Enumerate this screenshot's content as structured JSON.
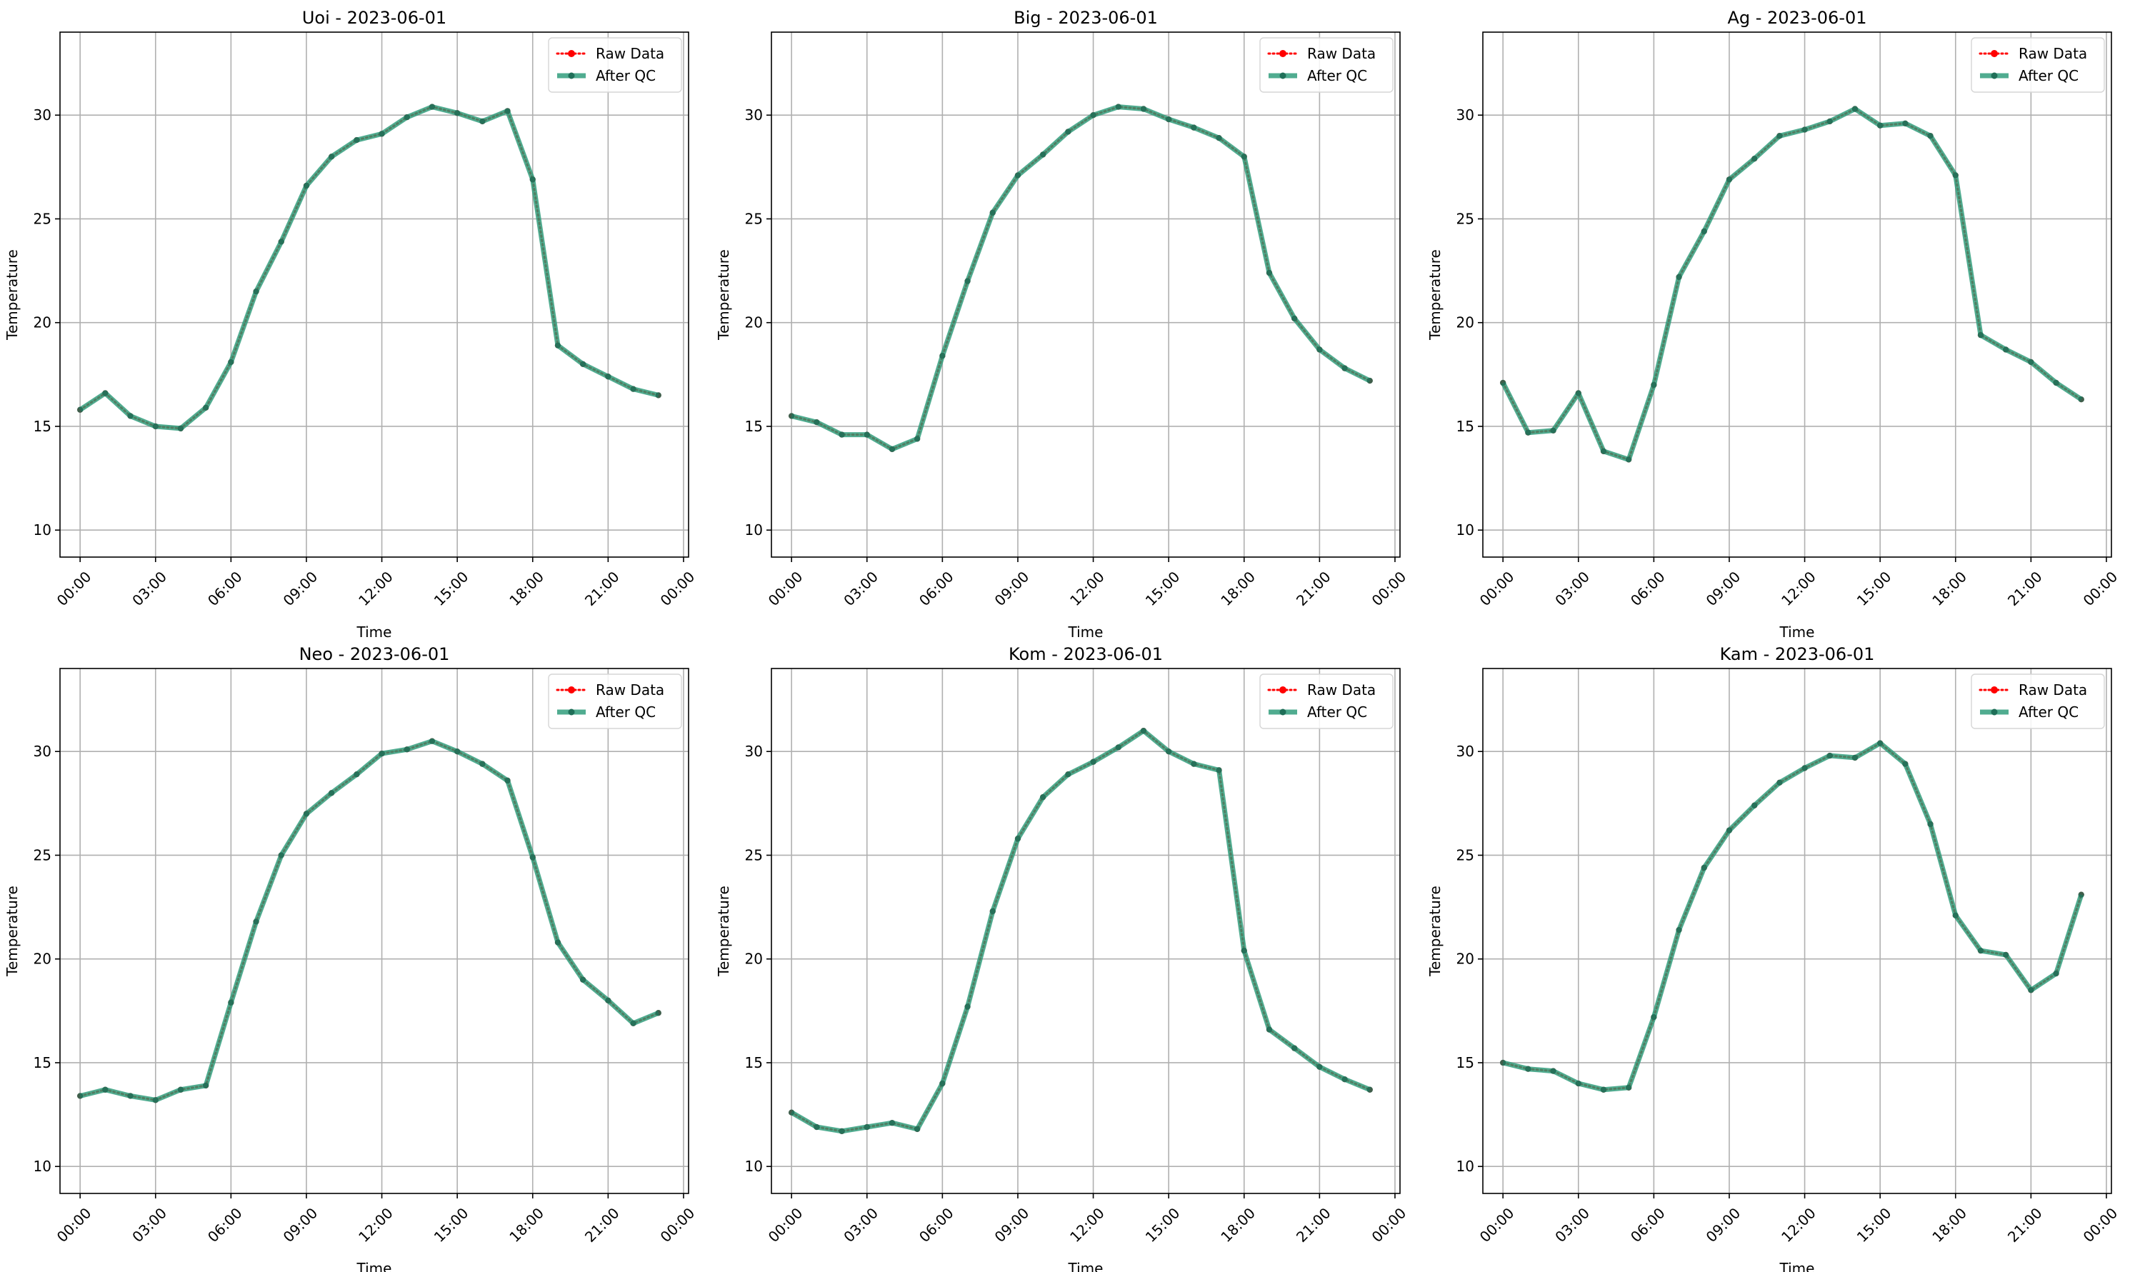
{
  "chart_data": [
    {
      "type": "line",
      "title": "Uoi - 2023-06-01",
      "xlabel": "Time",
      "ylabel": "Temperature",
      "x": [
        "00:00",
        "01:00",
        "02:00",
        "03:00",
        "04:00",
        "05:00",
        "06:00",
        "07:00",
        "08:00",
        "09:00",
        "10:00",
        "11:00",
        "12:00",
        "13:00",
        "14:00",
        "15:00",
        "16:00",
        "17:00",
        "18:00",
        "19:00",
        "20:00",
        "21:00",
        "22:00",
        "23:00"
      ],
      "xticks": [
        "00:00",
        "03:00",
        "06:00",
        "09:00",
        "12:00",
        "15:00",
        "18:00",
        "21:00",
        "00:00"
      ],
      "yticks": [
        10,
        15,
        20,
        25,
        30
      ],
      "ylim": [
        8.7,
        34.0
      ],
      "xlim": [
        "-00:48",
        "24:12"
      ],
      "grid": true,
      "legend_position": "top-right",
      "series": [
        {
          "name": "Raw Data",
          "color": "#ff0000",
          "style": "dotted",
          "values": [
            15.8,
            16.6,
            15.5,
            15.0,
            14.9,
            15.9,
            18.1,
            21.5,
            23.9,
            26.6,
            28.0,
            28.8,
            29.1,
            29.9,
            30.4,
            30.1,
            29.7,
            30.2,
            26.9,
            18.9,
            18.0,
            17.4,
            16.8,
            16.5
          ]
        },
        {
          "name": "After QC",
          "color": "#2a9a78",
          "style": "solid",
          "values": [
            15.8,
            16.6,
            15.5,
            15.0,
            14.9,
            15.9,
            18.1,
            21.5,
            23.9,
            26.6,
            28.0,
            28.8,
            29.1,
            29.9,
            30.4,
            30.1,
            29.7,
            30.2,
            26.9,
            18.9,
            18.0,
            17.4,
            16.8,
            16.5
          ]
        }
      ]
    },
    {
      "type": "line",
      "title": "Big - 2023-06-01",
      "xlabel": "Time",
      "ylabel": "Temperature",
      "x": [
        "00:00",
        "01:00",
        "02:00",
        "03:00",
        "04:00",
        "05:00",
        "06:00",
        "07:00",
        "08:00",
        "09:00",
        "10:00",
        "11:00",
        "12:00",
        "13:00",
        "14:00",
        "15:00",
        "16:00",
        "17:00",
        "18:00",
        "19:00",
        "20:00",
        "21:00",
        "22:00",
        "23:00"
      ],
      "xticks": [
        "00:00",
        "03:00",
        "06:00",
        "09:00",
        "12:00",
        "15:00",
        "18:00",
        "21:00",
        "00:00"
      ],
      "yticks": [
        10,
        15,
        20,
        25,
        30
      ],
      "ylim": [
        8.7,
        34.0
      ],
      "xlim": [
        "-00:48",
        "24:12"
      ],
      "grid": true,
      "legend_position": "top-right",
      "series": [
        {
          "name": "Raw Data",
          "color": "#ff0000",
          "style": "dotted",
          "values": [
            15.5,
            15.2,
            14.6,
            14.6,
            13.9,
            14.4,
            18.4,
            22.0,
            25.3,
            27.1,
            28.1,
            29.2,
            30.0,
            30.4,
            30.3,
            29.8,
            29.4,
            28.9,
            28.0,
            22.4,
            20.2,
            18.7,
            17.8,
            17.2
          ]
        },
        {
          "name": "After QC",
          "color": "#2a9a78",
          "style": "solid",
          "values": [
            15.5,
            15.2,
            14.6,
            14.6,
            13.9,
            14.4,
            18.4,
            22.0,
            25.3,
            27.1,
            28.1,
            29.2,
            30.0,
            30.4,
            30.3,
            29.8,
            29.4,
            28.9,
            28.0,
            22.4,
            20.2,
            18.7,
            17.8,
            17.2
          ]
        }
      ]
    },
    {
      "type": "line",
      "title": "Ag - 2023-06-01",
      "xlabel": "Time",
      "ylabel": "Temperature",
      "x": [
        "00:00",
        "01:00",
        "02:00",
        "03:00",
        "04:00",
        "05:00",
        "06:00",
        "07:00",
        "08:00",
        "09:00",
        "10:00",
        "11:00",
        "12:00",
        "13:00",
        "14:00",
        "15:00",
        "16:00",
        "17:00",
        "18:00",
        "19:00",
        "20:00",
        "21:00",
        "22:00",
        "23:00"
      ],
      "xticks": [
        "00:00",
        "03:00",
        "06:00",
        "09:00",
        "12:00",
        "15:00",
        "18:00",
        "21:00",
        "00:00"
      ],
      "yticks": [
        10,
        15,
        20,
        25,
        30
      ],
      "ylim": [
        8.7,
        34.0
      ],
      "xlim": [
        "-00:48",
        "24:12"
      ],
      "grid": true,
      "legend_position": "top-right",
      "series": [
        {
          "name": "Raw Data",
          "color": "#ff0000",
          "style": "dotted",
          "values": [
            17.1,
            14.7,
            14.8,
            16.6,
            13.8,
            13.4,
            17.0,
            22.2,
            24.4,
            26.9,
            27.9,
            29.0,
            29.3,
            29.7,
            30.3,
            29.5,
            29.6,
            29.0,
            27.1,
            19.4,
            18.7,
            18.1,
            17.1,
            16.3
          ]
        },
        {
          "name": "After QC",
          "color": "#2a9a78",
          "style": "solid",
          "values": [
            17.1,
            14.7,
            14.8,
            16.6,
            13.8,
            13.4,
            17.0,
            22.2,
            24.4,
            26.9,
            27.9,
            29.0,
            29.3,
            29.7,
            30.3,
            29.5,
            29.6,
            29.0,
            27.1,
            19.4,
            18.7,
            18.1,
            17.1,
            16.3
          ]
        }
      ]
    },
    {
      "type": "line",
      "title": "Neo - 2023-06-01",
      "xlabel": "Time",
      "ylabel": "Temperature",
      "x": [
        "00:00",
        "01:00",
        "02:00",
        "03:00",
        "04:00",
        "05:00",
        "06:00",
        "07:00",
        "08:00",
        "09:00",
        "10:00",
        "11:00",
        "12:00",
        "13:00",
        "14:00",
        "15:00",
        "16:00",
        "17:00",
        "18:00",
        "19:00",
        "20:00",
        "21:00",
        "22:00",
        "23:00"
      ],
      "xticks": [
        "00:00",
        "03:00",
        "06:00",
        "09:00",
        "12:00",
        "15:00",
        "18:00",
        "21:00",
        "00:00"
      ],
      "yticks": [
        10,
        15,
        20,
        25,
        30
      ],
      "ylim": [
        8.7,
        34.0
      ],
      "xlim": [
        "-00:48",
        "24:12"
      ],
      "grid": true,
      "legend_position": "top-right",
      "series": [
        {
          "name": "Raw Data",
          "color": "#ff0000",
          "style": "dotted",
          "values": [
            13.4,
            13.7,
            13.4,
            13.2,
            13.7,
            13.9,
            17.9,
            21.8,
            25.0,
            27.0,
            28.0,
            28.9,
            29.9,
            30.1,
            30.5,
            30.0,
            29.4,
            28.6,
            24.9,
            20.8,
            19.0,
            18.0,
            16.9,
            17.4
          ]
        },
        {
          "name": "After QC",
          "color": "#2a9a78",
          "style": "solid",
          "values": [
            13.4,
            13.7,
            13.4,
            13.2,
            13.7,
            13.9,
            17.9,
            21.8,
            25.0,
            27.0,
            28.0,
            28.9,
            29.9,
            30.1,
            30.5,
            30.0,
            29.4,
            28.6,
            24.9,
            20.8,
            19.0,
            18.0,
            16.9,
            17.4
          ]
        }
      ]
    },
    {
      "type": "line",
      "title": "Kom - 2023-06-01",
      "xlabel": "Time",
      "ylabel": "Temperature",
      "x": [
        "00:00",
        "01:00",
        "02:00",
        "03:00",
        "04:00",
        "05:00",
        "06:00",
        "07:00",
        "08:00",
        "09:00",
        "10:00",
        "11:00",
        "12:00",
        "13:00",
        "14:00",
        "15:00",
        "16:00",
        "17:00",
        "18:00",
        "19:00",
        "20:00",
        "21:00",
        "22:00",
        "23:00"
      ],
      "xticks": [
        "00:00",
        "03:00",
        "06:00",
        "09:00",
        "12:00",
        "15:00",
        "18:00",
        "21:00",
        "00:00"
      ],
      "yticks": [
        10,
        15,
        20,
        25,
        30
      ],
      "ylim": [
        8.7,
        34.0
      ],
      "xlim": [
        "-00:48",
        "24:12"
      ],
      "grid": true,
      "legend_position": "top-right",
      "series": [
        {
          "name": "Raw Data",
          "color": "#ff0000",
          "style": "dotted",
          "values": [
            12.6,
            11.9,
            11.7,
            11.9,
            12.1,
            11.8,
            14.0,
            17.7,
            22.3,
            25.8,
            27.8,
            28.9,
            29.5,
            30.2,
            31.0,
            30.0,
            29.4,
            29.1,
            20.4,
            16.6,
            15.7,
            14.8,
            14.2,
            13.7
          ]
        },
        {
          "name": "After QC",
          "color": "#2a9a78",
          "style": "solid",
          "values": [
            12.6,
            11.9,
            11.7,
            11.9,
            12.1,
            11.8,
            14.0,
            17.7,
            22.3,
            25.8,
            27.8,
            28.9,
            29.5,
            30.2,
            31.0,
            30.0,
            29.4,
            29.1,
            20.4,
            16.6,
            15.7,
            14.8,
            14.2,
            13.7
          ]
        }
      ]
    },
    {
      "type": "line",
      "title": "Kam - 2023-06-01",
      "xlabel": "Time",
      "ylabel": "Temperature",
      "x": [
        "00:00",
        "01:00",
        "02:00",
        "03:00",
        "04:00",
        "05:00",
        "06:00",
        "07:00",
        "08:00",
        "09:00",
        "10:00",
        "11:00",
        "12:00",
        "13:00",
        "14:00",
        "15:00",
        "16:00",
        "17:00",
        "18:00",
        "19:00",
        "20:00",
        "21:00",
        "22:00",
        "23:00"
      ],
      "xticks": [
        "00:00",
        "03:00",
        "06:00",
        "09:00",
        "12:00",
        "15:00",
        "18:00",
        "21:00",
        "00:00"
      ],
      "yticks": [
        10,
        15,
        20,
        25,
        30
      ],
      "ylim": [
        8.7,
        34.0
      ],
      "xlim": [
        "-00:48",
        "24:12"
      ],
      "grid": true,
      "legend_position": "top-right",
      "series": [
        {
          "name": "Raw Data",
          "color": "#ff0000",
          "style": "dotted",
          "values": [
            15.0,
            14.7,
            14.6,
            14.0,
            13.7,
            13.8,
            17.2,
            21.4,
            24.4,
            26.2,
            27.4,
            28.5,
            29.2,
            29.8,
            29.7,
            30.4,
            29.4,
            26.5,
            22.1,
            20.4,
            20.2,
            18.5,
            19.3,
            23.1
          ]
        },
        {
          "name": "After QC",
          "color": "#2a9a78",
          "style": "solid",
          "values": [
            15.0,
            14.7,
            14.6,
            14.0,
            13.7,
            13.8,
            17.2,
            21.4,
            24.4,
            26.2,
            27.4,
            28.5,
            29.2,
            29.8,
            29.7,
            30.4,
            29.4,
            26.5,
            22.1,
            20.4,
            20.2,
            18.5,
            19.3,
            23.1
          ]
        }
      ]
    }
  ]
}
